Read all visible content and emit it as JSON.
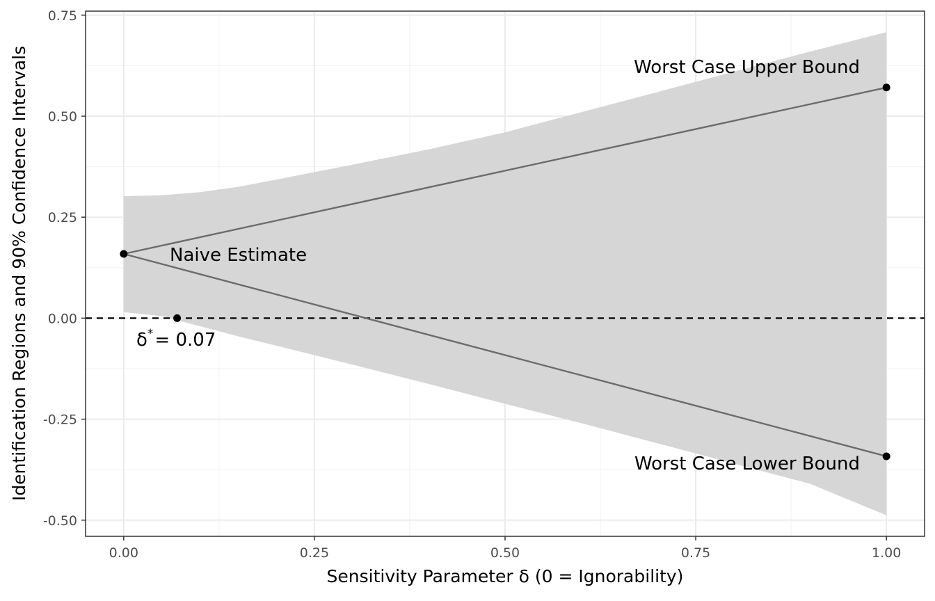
{
  "chart_data": {
    "type": "line",
    "xlabel": "Sensitivity Parameter δ (0 = Ignorability)",
    "ylabel": "Identification Regions and 90% Confidence Intervals",
    "xlim": [
      -0.05,
      1.05
    ],
    "ylim": [
      -0.54,
      0.76
    ],
    "x_ticks": [
      0.0,
      0.25,
      0.5,
      0.75,
      1.0
    ],
    "x_tick_labels": [
      "0.00",
      "0.25",
      "0.50",
      "0.75",
      "1.00"
    ],
    "y_ticks": [
      -0.5,
      -0.25,
      0.0,
      0.25,
      0.5,
      0.75
    ],
    "y_tick_labels": [
      "-0.50",
      "-0.25",
      "0.00",
      "0.25",
      "0.50",
      "0.75"
    ],
    "grid": true,
    "series": [
      {
        "x": [
          0.0,
          1.0
        ],
        "y": [
          0.159,
          0.571
        ]
      },
      {
        "x": [
          0.0,
          1.0
        ],
        "y": [
          0.159,
          -0.342
        ]
      }
    ],
    "confidence_band": {
      "x": [
        0.0,
        0.05,
        0.1,
        0.15,
        0.2,
        0.3,
        0.4,
        0.5,
        0.6,
        0.7,
        0.8,
        0.9,
        1.0
      ],
      "upper": [
        0.302,
        0.304,
        0.312,
        0.325,
        0.343,
        0.38,
        0.418,
        0.46,
        0.51,
        0.56,
        0.61,
        0.66,
        0.708
      ],
      "lower": [
        0.015,
        0.005,
        -0.02,
        -0.045,
        -0.068,
        -0.115,
        -0.163,
        -0.212,
        -0.26,
        -0.31,
        -0.36,
        -0.41,
        -0.488
      ]
    },
    "points": [
      {
        "x": 0.0,
        "y": 0.159
      },
      {
        "x": 1.0,
        "y": 0.571
      },
      {
        "x": 1.0,
        "y": -0.342
      },
      {
        "x": 0.07,
        "y": 0.0
      }
    ],
    "reference_line": {
      "y": 0.0,
      "style": "dashed"
    },
    "annotations": {
      "naive": "Naive Estimate",
      "upper": "Worst Case Upper Bound",
      "lower": "Worst Case Lower Bound",
      "delta_symbol": "δ",
      "delta_sup": "*",
      "delta_value": "= 0.07"
    },
    "colors": {
      "band": "#d6d6d6",
      "line": "#6b6b6b",
      "point": "#000000",
      "grid_major": "#ebebeb",
      "grid_minor": "#f4f4f4",
      "panel_border": "#333333",
      "tick_text": "#4d4d4d"
    }
  }
}
